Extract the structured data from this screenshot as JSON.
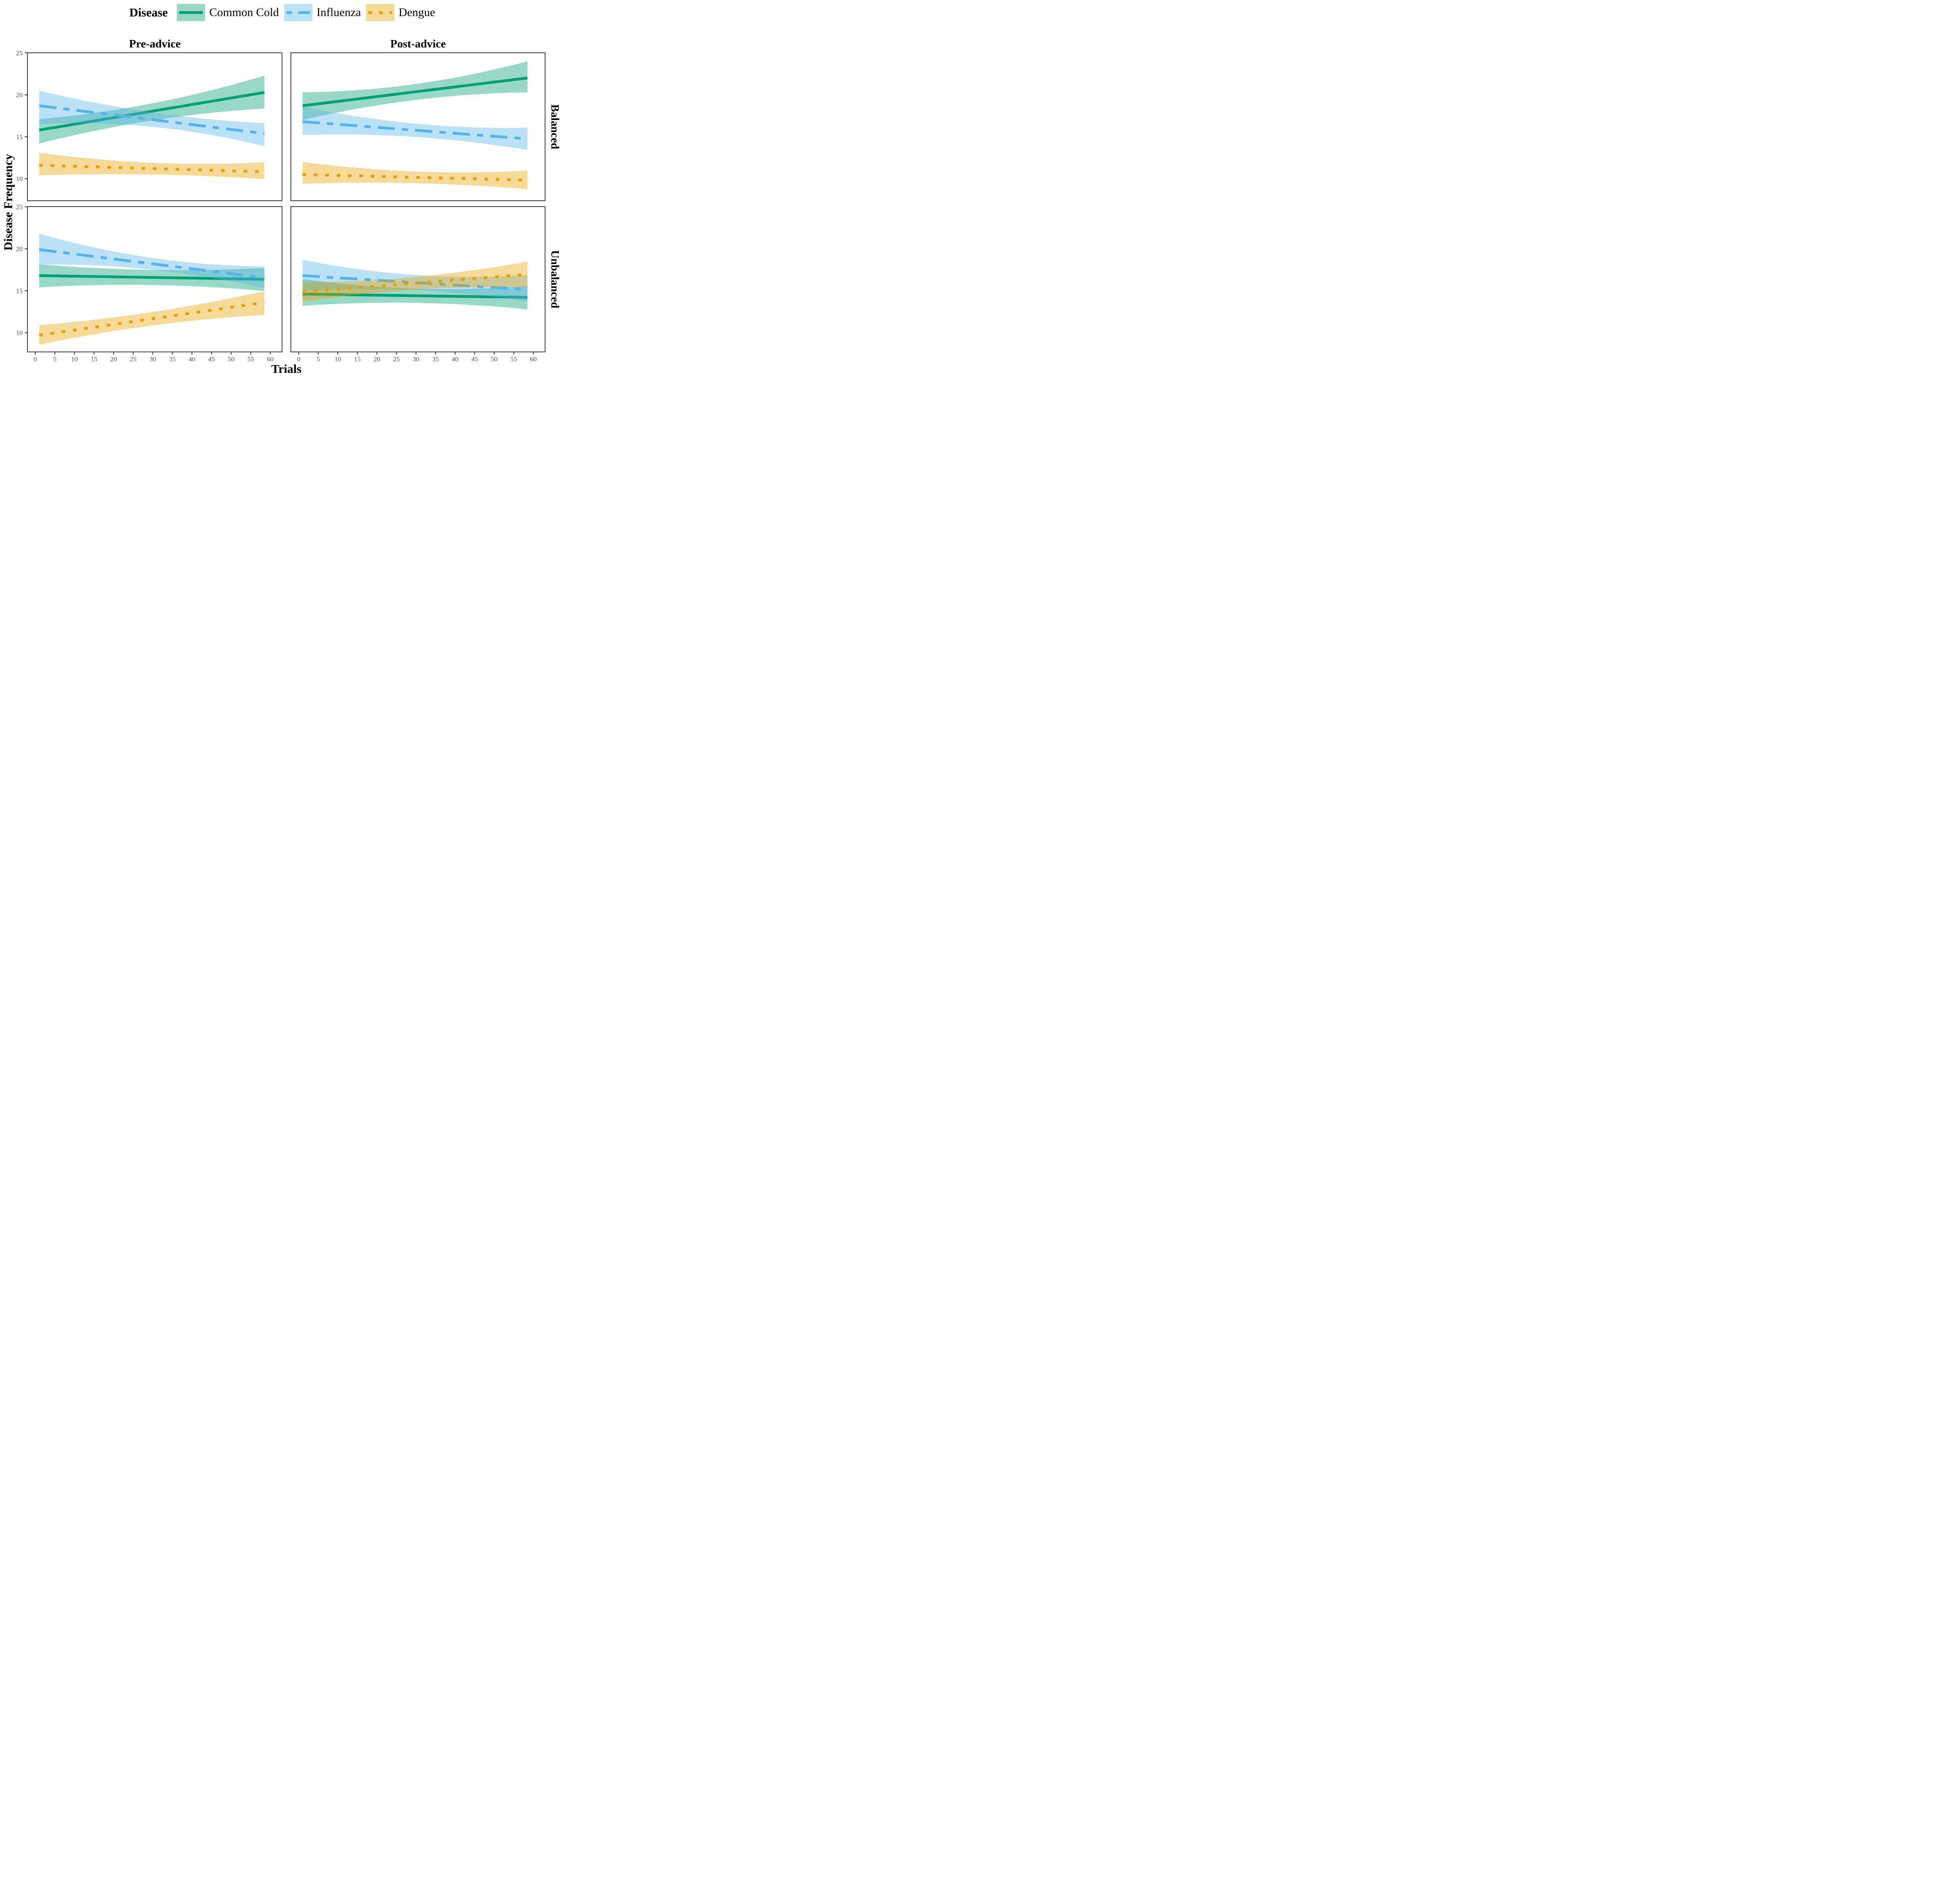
{
  "legend": {
    "title": "Disease",
    "items": [
      {
        "label": "Common Cold"
      },
      {
        "label": "Influenza"
      },
      {
        "label": "Dengue"
      }
    ]
  },
  "facets": {
    "columns": [
      "Pre-advice",
      "Post-advice"
    ],
    "rows": [
      "Balanced",
      "Unbalanced"
    ]
  },
  "axes": {
    "x_title": "Trials",
    "y_title": "Disease Frequency",
    "x_ticks": [
      0,
      5,
      10,
      15,
      20,
      25,
      30,
      35,
      40,
      45,
      50,
      55,
      60
    ],
    "y_ticks": [
      25,
      20,
      15,
      10
    ]
  },
  "colors": {
    "common_cold": "#009E73",
    "influenza": "#56B4E9",
    "dengue": "#E69F00",
    "axis_line": "#333333",
    "tick_label": "#4D4D4D",
    "text": "#000000",
    "background": "#FFFFFF",
    "ribbon_alpha": 0.4
  },
  "chart_data": {
    "type": "line",
    "note": "Linear fit lines with confidence ribbons, faceted 2x2 (columns: advice phase, rows: balance condition). Values sampled at trials 1, 30, 60.",
    "xlabel": "Trials",
    "ylabel": "Disease Frequency",
    "xlim": [
      -2,
      63
    ],
    "ylim": [
      7.5,
      25
    ],
    "x_ticks": [
      0,
      5,
      10,
      15,
      20,
      25,
      30,
      35,
      40,
      45,
      50,
      55,
      60
    ],
    "y_ticks": [
      25,
      20,
      15,
      10
    ],
    "legend_position": "top",
    "grid": false,
    "series_meta": [
      {
        "key": "common_cold",
        "name": "Common Cold",
        "color": "#009E73",
        "dash": null,
        "legend_dash": null
      },
      {
        "key": "influenza",
        "name": "Influenza",
        "color": "#56B4E9",
        "dash": [
          44,
          18,
          16,
          18
        ],
        "legend_dash": [
          14,
          16,
          36,
          16
        ]
      },
      {
        "key": "dengue",
        "name": "Dengue",
        "color": "#E69F00",
        "dash": [
          9,
          20
        ],
        "legend_dash": [
          9,
          18
        ]
      }
    ],
    "panels": [
      {
        "column": 0,
        "row": 0,
        "column_label": "Pre-advice",
        "row_label": "Balanced",
        "series": [
          {
            "key": "common_cold",
            "x": [
              1,
              30,
              60
            ],
            "y": [
              15.8,
              18.06,
              20.4
            ],
            "lo": [
              14.2,
              16.95,
              18.4
            ],
            "hi": [
              17.1,
              19.0,
              22.5
            ]
          },
          {
            "key": "influenza",
            "x": [
              1,
              30,
              60
            ],
            "y": [
              18.7,
              17.03,
              15.3
            ],
            "lo": [
              16.5,
              16.18,
              13.7
            ],
            "hi": [
              20.5,
              17.9,
              16.6
            ]
          },
          {
            "key": "dengue",
            "x": [
              1,
              30,
              60
            ],
            "y": [
              11.6,
              11.21,
              10.8
            ],
            "lo": [
              10.4,
              10.5,
              9.9
            ],
            "hi": [
              13.1,
              11.9,
              12.0
            ]
          }
        ]
      },
      {
        "column": 1,
        "row": 0,
        "column_label": "Post-advice",
        "row_label": "Balanced",
        "series": [
          {
            "key": "common_cold",
            "x": [
              1,
              30,
              60
            ],
            "y": [
              18.7,
              20.37,
              22.1
            ],
            "lo": [
              17.0,
              19.4,
              20.3
            ],
            "hi": [
              20.3,
              21.3,
              24.2
            ]
          },
          {
            "key": "influenza",
            "x": [
              1,
              30,
              60
            ],
            "y": [
              16.8,
              15.77,
              14.7
            ],
            "lo": [
              15.2,
              14.97,
              13.3
            ],
            "hi": [
              18.6,
              16.57,
              16.1
            ]
          },
          {
            "key": "dengue",
            "x": [
              1,
              30,
              60
            ],
            "y": [
              10.5,
              10.16,
              9.8
            ],
            "lo": [
              9.4,
              9.46,
              8.7
            ],
            "hi": [
              12.0,
              10.86,
              11.0
            ]
          }
        ]
      },
      {
        "column": 0,
        "row": 1,
        "column_label": "Pre-advice",
        "row_label": "Unbalanced",
        "series": [
          {
            "key": "common_cold",
            "x": [
              1,
              30,
              60
            ],
            "y": [
              16.8,
              16.58,
              16.35
            ],
            "lo": [
              15.4,
              15.68,
              14.9
            ],
            "hi": [
              18.15,
              17.48,
              17.75
            ]
          },
          {
            "key": "influenza",
            "x": [
              1,
              30,
              60
            ],
            "y": [
              19.9,
              18.2,
              16.45
            ],
            "lo": [
              18.12,
              17.5,
              15.15
            ],
            "hi": [
              21.8,
              18.9,
              17.9
            ]
          },
          {
            "key": "dengue",
            "x": [
              1,
              30,
              60
            ],
            "y": [
              9.7,
              11.67,
              13.7
            ],
            "lo": [
              8.55,
              10.87,
              12.15
            ],
            "hi": [
              10.9,
              12.47,
              15.1
            ]
          }
        ]
      },
      {
        "column": 1,
        "row": 1,
        "column_label": "Post-advice",
        "row_label": "Unbalanced",
        "series": [
          {
            "key": "common_cold",
            "x": [
              1,
              30,
              60
            ],
            "y": [
              14.6,
              14.4,
              14.2
            ],
            "lo": [
              13.2,
              13.55,
              12.7
            ],
            "hi": [
              16.4,
              15.25,
              15.6
            ]
          },
          {
            "key": "influenza",
            "x": [
              1,
              30,
              60
            ],
            "y": [
              16.8,
              15.96,
              15.1
            ],
            "lo": [
              15.0,
              15.07,
              13.6
            ],
            "hi": [
              18.7,
              16.87,
              16.9
            ]
          },
          {
            "key": "dengue",
            "x": [
              1,
              30,
              60
            ],
            "y": [
              14.85,
              15.91,
              17.0
            ],
            "lo": [
              13.7,
              15.15,
              15.4
            ],
            "hi": [
              16.0,
              16.65,
              18.6
            ]
          }
        ]
      }
    ]
  }
}
